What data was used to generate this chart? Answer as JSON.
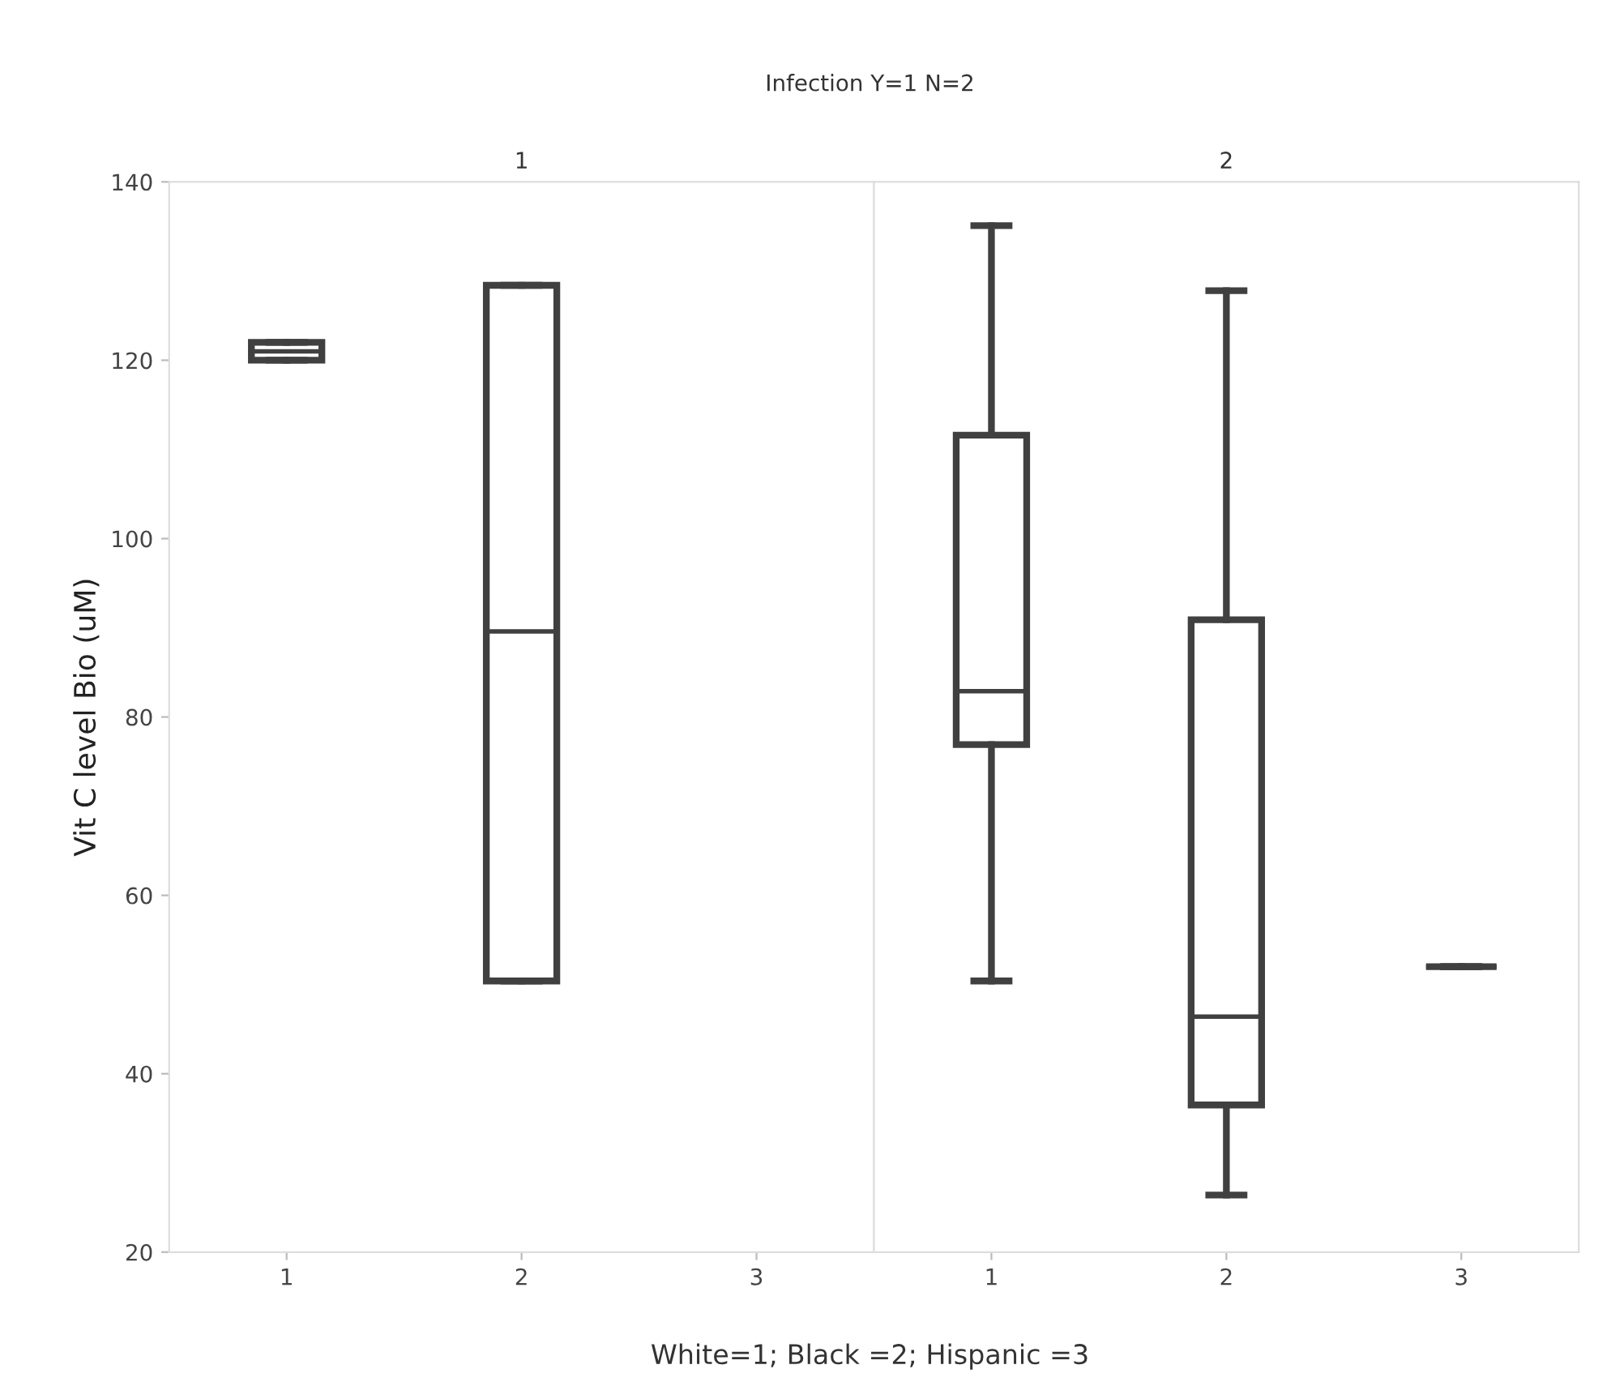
{
  "chart_data": [
    {
      "type": "box",
      "title": "1",
      "xlabel": "White=1; Black =2; Hispanic =3",
      "ylabel": "Vit C level Bio (uM)",
      "annotations": [
        "Infection Y=1 N=2"
      ],
      "categories": [
        "1",
        "2",
        "3"
      ],
      "color": "#404040",
      "ylim": [
        20,
        140
      ],
      "yticks": [
        20,
        40,
        60,
        80,
        100,
        120,
        140
      ],
      "grid": false,
      "boxes": [
        {
          "low": 120,
          "q1": 120,
          "median": 121,
          "q3": 122,
          "high": 122
        },
        {
          "low": 50.4,
          "q1": 50.4,
          "median": 89.6,
          "q3": 128.4,
          "high": 128.4
        },
        null
      ]
    },
    {
      "type": "box",
      "title": "2",
      "categories": [
        "1",
        "2",
        "3"
      ],
      "color": "#404040",
      "ylim": [
        20,
        140
      ],
      "tick_labels": "x",
      "grid": false,
      "boxes": [
        {
          "low": 50.4,
          "q1": 76.9,
          "median": 82.9,
          "q3": 111.6,
          "high": 135.1
        },
        {
          "low": 26.4,
          "q1": 36.5,
          "median": 46.4,
          "q3": 90.9,
          "high": 127.8
        },
        {
          "low": 52,
          "q1": 52,
          "median": 52,
          "q3": 52,
          "high": 52
        }
      ]
    }
  ]
}
